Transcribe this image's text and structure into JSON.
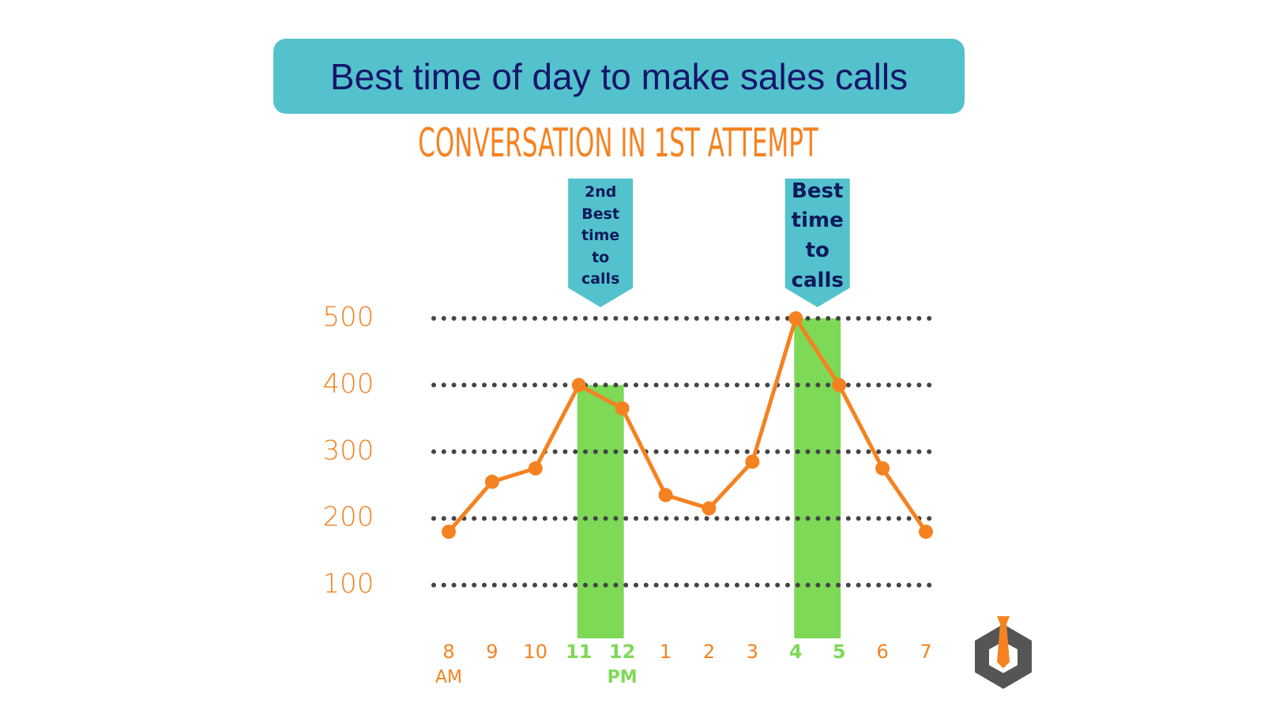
{
  "chart_data": {
    "type": "line",
    "title": "Best time of day to make sales calls",
    "subtitle": "CONVERSATION IN 1ST ATTEMPT",
    "categories": [
      "8",
      "9",
      "10",
      "11",
      "12",
      "1",
      "2",
      "3",
      "4",
      "5",
      "6",
      "7"
    ],
    "x_sublabels": [
      "AM",
      null,
      null,
      null,
      "PM",
      null,
      null,
      null,
      null,
      null,
      null,
      null
    ],
    "series": [
      {
        "color": "#f58220",
        "values": [
          180,
          255,
          275,
          400,
          365,
          235,
          215,
          285,
          500,
          400,
          275,
          180
        ]
      }
    ],
    "ylim": [
      0,
      500
    ],
    "yticks": [
      100,
      200,
      300,
      400,
      500
    ],
    "grid": true,
    "highlights": [
      {
        "from": "11",
        "to": "12",
        "value": 400,
        "label": "2nd Best time to calls",
        "color": "#7ed957"
      },
      {
        "from": "4",
        "to": "5",
        "value": 500,
        "label": "Best time to calls",
        "color": "#7ed957"
      }
    ]
  }
}
